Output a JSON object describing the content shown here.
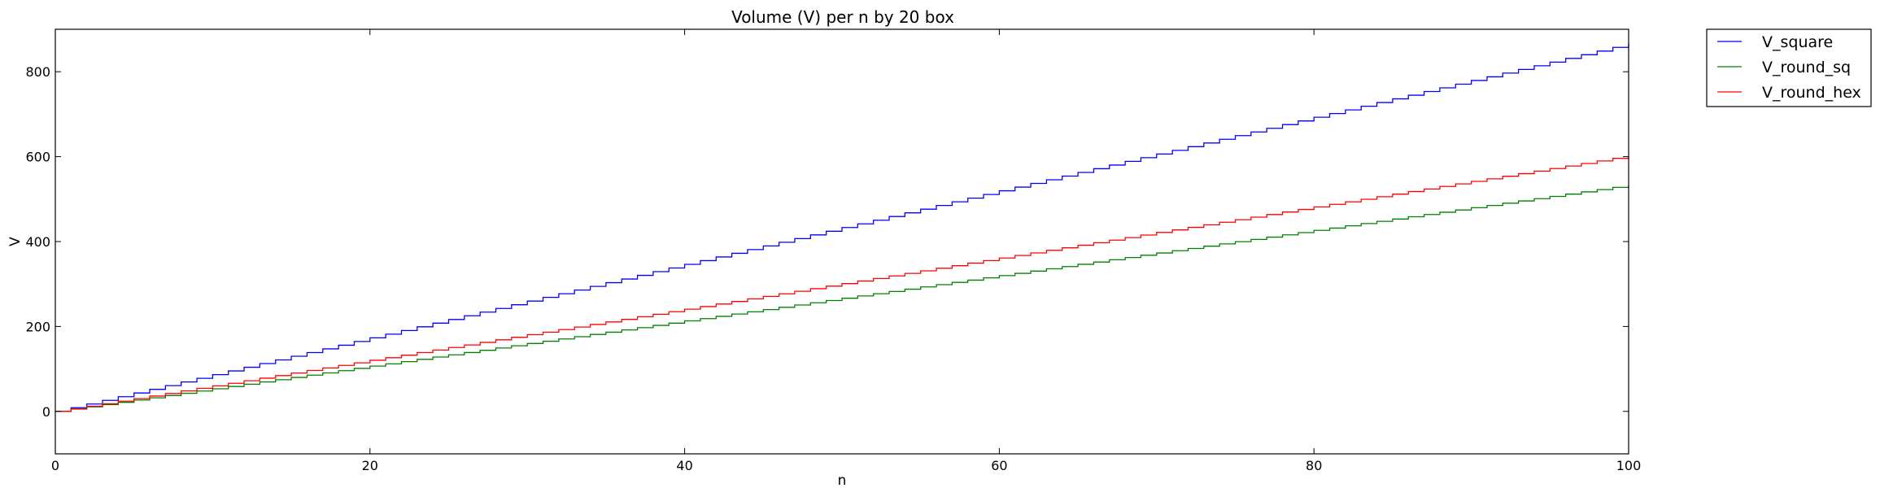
{
  "chart_data": {
    "type": "line",
    "title": "Volume (V) per n by 20 box",
    "xlabel": "n",
    "ylabel": "V",
    "xlim": [
      0,
      100
    ],
    "ylim": [
      -100,
      900
    ],
    "xticks": [
      0,
      20,
      40,
      60,
      80,
      100
    ],
    "yticks": [
      0,
      200,
      400,
      600,
      800
    ],
    "grid": false,
    "legend_position": "outside-top-right",
    "step_function": true,
    "series": [
      {
        "name": "V_square",
        "color": "#0000ff",
        "slope": 8.66,
        "n_start": 0,
        "n_end": 100
      },
      {
        "name": "V_round_sq",
        "color": "#008000",
        "slope": 5.33,
        "n_start": 0,
        "n_end": 100
      },
      {
        "name": "V_round_hex",
        "color": "#ff0000",
        "slope": 6.02,
        "n_start": 0,
        "n_end": 100
      }
    ]
  }
}
